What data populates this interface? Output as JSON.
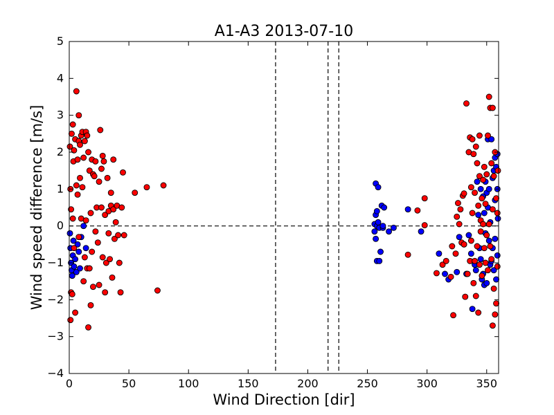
{
  "chart_data": {
    "type": "scatter",
    "title": "A1-A3 2013-07-10",
    "xlabel": "Wind Direction [dir]",
    "ylabel": "Wind speed difference [m/s]",
    "xlim": [
      0,
      360
    ],
    "ylim": [
      -4,
      5
    ],
    "x_ticks": [
      0,
      50,
      100,
      150,
      200,
      250,
      300,
      350
    ],
    "y_ticks": [
      -4,
      -3,
      -2,
      -1,
      0,
      1,
      2,
      3,
      4,
      5
    ],
    "grid": false,
    "legend": "none",
    "reference_lines": {
      "horizontal_dashed_y": 0,
      "vertical_dashed_x": [
        173,
        217,
        226
      ]
    },
    "series": [
      {
        "color": "#0000ff",
        "points": [
          [
            0.5,
            -0.2
          ],
          [
            1,
            -0.6
          ],
          [
            1.5,
            -1.0
          ],
          [
            2,
            -1.2
          ],
          [
            2.5,
            -1.35
          ],
          [
            3,
            -0.8
          ],
          [
            3.5,
            -0.4
          ],
          [
            4,
            -1.1
          ],
          [
            5,
            -0.9
          ],
          [
            6,
            -1.25
          ],
          [
            7,
            -0.5
          ],
          [
            8,
            -0.7
          ],
          [
            9,
            -1.15
          ],
          [
            10,
            -0.3
          ],
          [
            12,
            0.0
          ],
          [
            14,
            -0.6
          ],
          [
            256,
            -0.15
          ],
          [
            256,
            0.05
          ],
          [
            257,
            -0.35
          ],
          [
            257,
            0.3
          ],
          [
            257,
            1.15
          ],
          [
            258,
            0.0
          ],
          [
            258,
            -0.95
          ],
          [
            258,
            0.4
          ],
          [
            259,
            0.1
          ],
          [
            259,
            1.05
          ],
          [
            260,
            -0.05
          ],
          [
            260,
            -0.95
          ],
          [
            261,
            -0.7
          ],
          [
            262,
            0.55
          ],
          [
            263,
            -0.05
          ],
          [
            263,
            0.0
          ],
          [
            264,
            0.5
          ],
          [
            268,
            -0.15
          ],
          [
            272,
            -0.05
          ],
          [
            284,
            0.45
          ],
          [
            295,
            -0.15
          ],
          [
            310,
            -0.75
          ],
          [
            315,
            -1.3
          ],
          [
            318,
            -1.45
          ],
          [
            325,
            -1.25
          ],
          [
            327,
            -0.3
          ],
          [
            331,
            -0.5
          ],
          [
            333,
            -1.3
          ],
          [
            335,
            -0.25
          ],
          [
            337,
            -0.75
          ],
          [
            338,
            -2.25
          ],
          [
            340,
            -1.05
          ],
          [
            341,
            -1.2
          ],
          [
            342,
            1.2
          ],
          [
            343,
            0.3
          ],
          [
            344,
            -0.6
          ],
          [
            345,
            1.0
          ],
          [
            345,
            -0.9
          ],
          [
            346,
            -1.45
          ],
          [
            347,
            0.8
          ],
          [
            347,
            -1.3
          ],
          [
            348,
            -1.6
          ],
          [
            348,
            0.35
          ],
          [
            349,
            1.2
          ],
          [
            349,
            -0.2
          ],
          [
            350,
            0.9
          ],
          [
            350,
            -1.55
          ],
          [
            351,
            2.35
          ],
          [
            351,
            0.5
          ],
          [
            352,
            -0.4
          ],
          [
            352,
            1.0
          ],
          [
            353,
            -1.05
          ],
          [
            353,
            0.1
          ],
          [
            354,
            2.35
          ],
          [
            354,
            -0.95
          ],
          [
            355,
            1.3
          ],
          [
            355,
            -0.6
          ],
          [
            356,
            1.5
          ],
          [
            356,
            -1.2
          ],
          [
            357,
            0.7
          ],
          [
            357,
            1.85
          ],
          [
            357,
            -0.35
          ],
          [
            358,
            1.6
          ],
          [
            358,
            -1.45
          ],
          [
            359,
            1.0
          ],
          [
            359,
            -0.8
          ],
          [
            359,
            1.95
          ],
          [
            359.5,
            0.2
          ]
        ]
      },
      {
        "color": "#ff0000",
        "points": [
          [
            0.5,
            2.15
          ],
          [
            1,
            1.0
          ],
          [
            1,
            -2.55
          ],
          [
            1.5,
            -1.8
          ],
          [
            1.5,
            0.45
          ],
          [
            2,
            2.5
          ],
          [
            2.5,
            -1.85
          ],
          [
            3,
            2.75
          ],
          [
            3,
            0.2
          ],
          [
            3.5,
            1.75
          ],
          [
            4,
            2.05
          ],
          [
            4,
            -0.6
          ],
          [
            5,
            2.35
          ],
          [
            5,
            -2.35
          ],
          [
            6,
            3.65
          ],
          [
            6,
            1.1
          ],
          [
            7,
            1.8
          ],
          [
            7,
            0.85
          ],
          [
            8,
            3.0
          ],
          [
            8,
            2.3
          ],
          [
            8,
            -0.3
          ],
          [
            9,
            1.3
          ],
          [
            9,
            2.2
          ],
          [
            10,
            2.45
          ],
          [
            10,
            0.2
          ],
          [
            11,
            2.55
          ],
          [
            11,
            1.05
          ],
          [
            12,
            1.85
          ],
          [
            12,
            -1.5
          ],
          [
            13,
            2.3
          ],
          [
            13,
            -0.85
          ],
          [
            14,
            2.55
          ],
          [
            14,
            0.15
          ],
          [
            15,
            2.45
          ],
          [
            15,
            -1.15
          ],
          [
            16,
            2.0
          ],
          [
            16,
            -2.75
          ],
          [
            17,
            1.5
          ],
          [
            17,
            -1.15
          ],
          [
            18,
            -2.15
          ],
          [
            18,
            0.35
          ],
          [
            19,
            1.8
          ],
          [
            19,
            -0.7
          ],
          [
            20,
            1.4
          ],
          [
            20,
            -1.65
          ],
          [
            21,
            1.35
          ],
          [
            22,
            1.75
          ],
          [
            22,
            -0.15
          ],
          [
            23,
            0.5
          ],
          [
            24,
            -0.45
          ],
          [
            25,
            1.2
          ],
          [
            25,
            -1.6
          ],
          [
            26,
            2.6
          ],
          [
            27,
            0.5
          ],
          [
            27,
            1.55
          ],
          [
            28,
            1.9
          ],
          [
            28,
            -0.85
          ],
          [
            29,
            1.75
          ],
          [
            30,
            0.3
          ],
          [
            30,
            -1.8
          ],
          [
            31,
            -1.0
          ],
          [
            32,
            1.3
          ],
          [
            33,
            0.4
          ],
          [
            33,
            -0.2
          ],
          [
            34,
            -0.9
          ],
          [
            35,
            0.9
          ],
          [
            35,
            0.55
          ],
          [
            36,
            -1.4
          ],
          [
            37,
            1.8
          ],
          [
            37,
            0.45
          ],
          [
            38,
            -0.35
          ],
          [
            39,
            0.1
          ],
          [
            40,
            0.55
          ],
          [
            41,
            -0.25
          ],
          [
            42,
            -1.0
          ],
          [
            43,
            -1.8
          ],
          [
            44,
            0.5
          ],
          [
            45,
            1.45
          ],
          [
            46,
            -0.25
          ],
          [
            55,
            0.9
          ],
          [
            65,
            1.05
          ],
          [
            74,
            -1.75
          ],
          [
            79,
            1.1
          ],
          [
            284,
            -0.78
          ],
          [
            292,
            0.42
          ],
          [
            298,
            0.75
          ],
          [
            298,
            0.02
          ],
          [
            308,
            -1.28
          ],
          [
            313,
            -1.05
          ],
          [
            316,
            -0.95
          ],
          [
            320,
            -1.38
          ],
          [
            321,
            -0.55
          ],
          [
            322,
            -2.42
          ],
          [
            324,
            -0.75
          ],
          [
            325,
            0.25
          ],
          [
            326,
            0.62
          ],
          [
            327,
            0.05
          ],
          [
            328,
            0.45
          ],
          [
            329,
            -0.45
          ],
          [
            330,
            0.82
          ],
          [
            331,
            0.88
          ],
          [
            331,
            -0.5
          ],
          [
            332,
            -1.92
          ],
          [
            333,
            3.32
          ],
          [
            334,
            -1.3
          ],
          [
            335,
            2.0
          ],
          [
            336,
            2.4
          ],
          [
            336,
            -0.95
          ],
          [
            337,
            1.05
          ],
          [
            337,
            -0.4
          ],
          [
            338,
            2.35
          ],
          [
            338,
            0.35
          ],
          [
            339,
            1.95
          ],
          [
            339,
            -1.55
          ],
          [
            340,
            0.9
          ],
          [
            340,
            -0.95
          ],
          [
            341,
            2.15
          ],
          [
            341,
            -1.9
          ],
          [
            342,
            1.7
          ],
          [
            342,
            -0.55
          ],
          [
            343,
            0.55
          ],
          [
            343,
            -2.35
          ],
          [
            344,
            2.45
          ],
          [
            344,
            1.35
          ],
          [
            344,
            -1.05
          ],
          [
            345,
            0.15
          ],
          [
            345,
            -0.15
          ],
          [
            346,
            0.75
          ],
          [
            346,
            -1.35
          ],
          [
            347,
            1.25
          ],
          [
            347,
            0.05
          ],
          [
            348,
            -0.6
          ],
          [
            348,
            1.6
          ],
          [
            349,
            -1.0
          ],
          [
            349,
            0.6
          ],
          [
            350,
            1.4
          ],
          [
            350,
            -0.25
          ],
          [
            351,
            2.45
          ],
          [
            351,
            -1.2
          ],
          [
            352,
            3.5
          ],
          [
            352,
            0.05
          ],
          [
            353,
            3.2
          ],
          [
            353,
            -0.55
          ],
          [
            354,
            1.7
          ],
          [
            354,
            -0.9
          ],
          [
            355,
            3.2
          ],
          [
            355,
            0.45
          ],
          [
            355,
            -2.7
          ],
          [
            356,
            1.35
          ],
          [
            356,
            -1.7
          ],
          [
            357,
            2.0
          ],
          [
            357,
            -2.4
          ],
          [
            358,
            0.75
          ],
          [
            358,
            -2.1
          ],
          [
            359,
            0.35
          ],
          [
            359,
            -1.1
          ],
          [
            359.5,
            1.5
          ]
        ]
      }
    ]
  }
}
